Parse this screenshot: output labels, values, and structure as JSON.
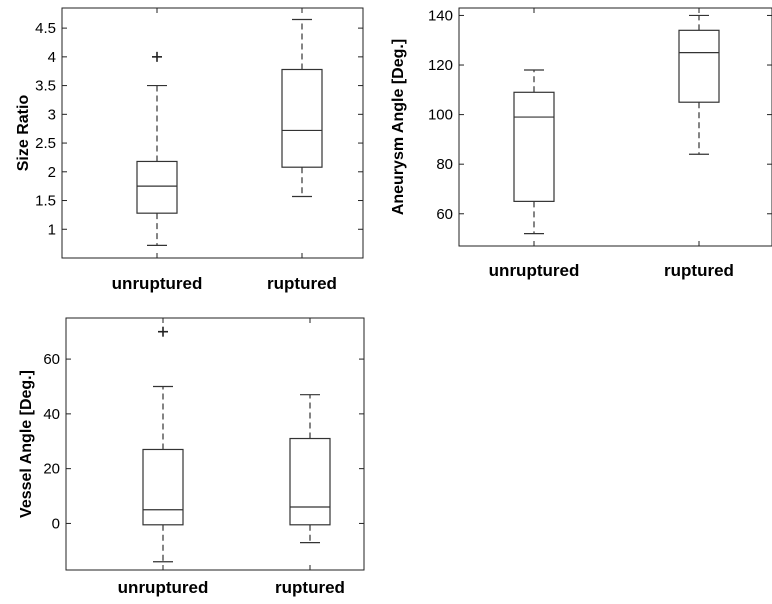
{
  "chart_data": [
    {
      "type": "box",
      "ylabel": "Size Ratio",
      "categories": [
        "unruptured",
        "ruptured"
      ],
      "ylim": [
        0.5,
        4.85
      ],
      "yticks": [
        1,
        1.5,
        2,
        2.5,
        3,
        3.5,
        4,
        4.5
      ],
      "ytick_labels": [
        "1",
        "1.5",
        "2",
        "2.5",
        "3",
        "3.5",
        "4",
        "4.5"
      ],
      "boxes": [
        {
          "whisker_low": 0.72,
          "q1": 1.28,
          "median": 1.75,
          "q3": 2.18,
          "whisker_high": 3.5,
          "outliers": [
            4.0
          ]
        },
        {
          "whisker_low": 1.57,
          "q1": 2.08,
          "median": 2.72,
          "q3": 3.78,
          "whisker_high": 4.65,
          "outliers": []
        }
      ]
    },
    {
      "type": "box",
      "ylabel": "Aneurysm Angle [Deg.]",
      "categories": [
        "unruptured",
        "ruptured"
      ],
      "ylim": [
        47,
        143
      ],
      "yticks": [
        60,
        80,
        100,
        120,
        140
      ],
      "ytick_labels": [
        "60",
        "80",
        "100",
        "120",
        "140"
      ],
      "boxes": [
        {
          "whisker_low": 52,
          "q1": 65,
          "median": 99,
          "q3": 109,
          "whisker_high": 118,
          "outliers": []
        },
        {
          "whisker_low": 84,
          "q1": 105,
          "median": 125,
          "q3": 134,
          "whisker_high": 140,
          "outliers": []
        }
      ]
    },
    {
      "type": "box",
      "ylabel": "Vessel Angle [Deg.]",
      "categories": [
        "unruptured",
        "ruptured"
      ],
      "ylim": [
        -17,
        75
      ],
      "yticks": [
        0,
        20,
        40,
        60
      ],
      "ytick_labels": [
        "0",
        "20",
        "40",
        "60"
      ],
      "boxes": [
        {
          "whisker_low": -14,
          "q1": -0.5,
          "median": 5,
          "q3": 27,
          "whisker_high": 50,
          "outliers": [
            70
          ]
        },
        {
          "whisker_low": -7,
          "q1": -0.5,
          "median": 6,
          "q3": 31,
          "whisker_high": 47,
          "outliers": []
        }
      ]
    }
  ]
}
